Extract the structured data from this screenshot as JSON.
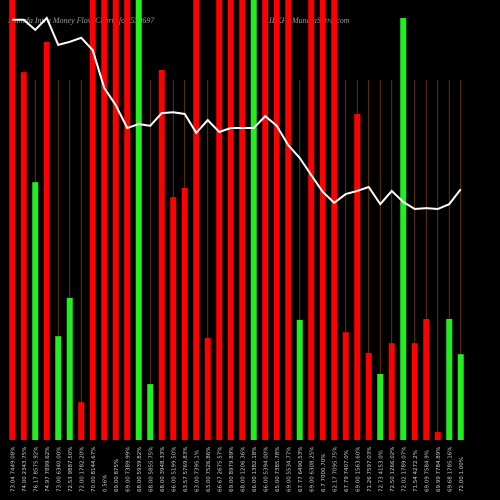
{
  "chart_data": {
    "type": "bar-line",
    "title": "Munafa Intra Money Flow Charts for 539697",
    "subtitle": "(LILKH) MunafaSutra.com",
    "categories": [
      "73.04 7449.08%",
      "74.00 2343.75%",
      "76.17 8575.92%",
      "74.97 7899.62%",
      "73.00 6340.00%",
      "72.53 9887.50%",
      "72.00 1782.20%",
      "70.00 8144.67%",
      "0.56%",
      "69.00 875%",
      "69.00 7389.99%",
      "68.00 5939.82%",
      "68.00 5855.75%",
      "68.00 3948.33%",
      "66.00 5199.50%",
      "63.57 5769.83%",
      "63.00 7395.1%",
      "63.00 7526.86%",
      "66.67 2675.57%",
      "69.00 8979.89%",
      "68.00 1206.36%",
      "66.00 1382.18%",
      "66.00 5394.00%",
      "65.00 7385.78%",
      "69.00 5534.77%",
      "67.77 6490.53%",
      "69.00 6308.25%",
      "6.7 7000.70%",
      "62.17 7095.75%",
      "67.79 7407.0%",
      "69.00 1563.60%",
      "71.26 7597.03%",
      "72.73 4153.0%",
      "72.50 1266.02%",
      "72.02 1789.07%",
      "71.54 4272.2%",
      "69.09 7584.9%",
      "69.99 7784.89%",
      "69.68 1785.16%",
      "72.00 1.00%"
    ],
    "ylim": [
      0,
      100
    ],
    "series": [
      {
        "kind": "bar",
        "values": [
          100,
          83.6,
          58.6,
          90.5,
          23.6,
          32.3,
          8.6,
          100,
          100,
          100,
          100,
          100,
          12.7,
          84.1,
          55.2,
          57.3,
          100,
          23.2,
          100,
          100,
          100,
          100,
          100,
          100,
          100,
          27.3,
          100,
          100,
          100,
          24.5,
          74.1,
          19.8,
          15,
          22,
          95.9,
          22,
          27.5,
          1.8,
          27.5,
          19.5
        ],
        "colors": [
          "#ff0000",
          "#ff0000",
          "#22ee22",
          "#ff0000",
          "#22ee22",
          "#22ee22",
          "#ff0000",
          "#ff0000",
          "#ff0000",
          "#ff0000",
          "#ff0000",
          "#22ee22",
          "#22ee22",
          "#ff0000",
          "#ff0000",
          "#ff0000",
          "#ff0000",
          "#ff0000",
          "#ff0000",
          "#ff0000",
          "#ff0000",
          "#22ee22",
          "#ff0000",
          "#ff0000",
          "#ff0000",
          "#22ee22",
          "#ff0000",
          "#ff0000",
          "#ff0000",
          "#ff0000",
          "#ff0000",
          "#ff0000",
          "#22ee22",
          "#ff0000",
          "#22ee22",
          "#ff0000",
          "#ff0000",
          "#ff0000",
          "#22ee22",
          "#22ee22"
        ]
      },
      {
        "kind": "line",
        "color": "#ffffff",
        "values": [
          95.5,
          95.5,
          93.2,
          95.9,
          89.8,
          90.5,
          91.4,
          88.6,
          80,
          76.1,
          70.9,
          71.8,
          71.4,
          74.3,
          74.5,
          74.1,
          69.8,
          72.7,
          70,
          70.9,
          70.9,
          70.9,
          73.6,
          71.4,
          67,
          64.1,
          60.2,
          56.4,
          53.9,
          55.9,
          56.6,
          57.5,
          53.6,
          56.6,
          54.1,
          52.5,
          52.7,
          52.5,
          53.6,
          57
        ]
      }
    ]
  }
}
